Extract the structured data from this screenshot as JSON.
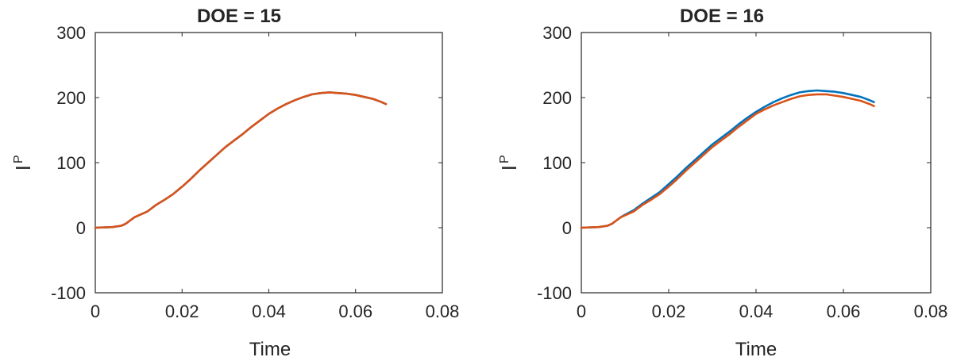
{
  "chart_data": [
    {
      "type": "line",
      "title": "DOE = 15",
      "xlabel": "Time",
      "ylabel": "I",
      "ylabel_superscript": "P",
      "xlim": [
        0,
        0.08
      ],
      "ylim": [
        -100,
        300
      ],
      "xticks": [
        "0",
        "0.02",
        "0.04",
        "0.06",
        "0.08"
      ],
      "yticks": [
        "-100",
        "0",
        "100",
        "200",
        "300"
      ],
      "grid": false,
      "series": [
        {
          "color": "#0072BD",
          "x": [
            0,
            0.004,
            0.006,
            0.007,
            0.008,
            0.009,
            0.01,
            0.012,
            0.014,
            0.016,
            0.018,
            0.02,
            0.022,
            0.024,
            0.026,
            0.028,
            0.03,
            0.032,
            0.034,
            0.036,
            0.038,
            0.04,
            0.042,
            0.044,
            0.046,
            0.048,
            0.05,
            0.052,
            0.054,
            0.056,
            0.058,
            0.06,
            0.062,
            0.064,
            0.066,
            0.067
          ],
          "y": [
            0,
            1,
            3,
            6,
            11,
            16,
            19,
            25,
            35,
            43,
            52,
            63,
            75,
            88,
            100,
            112,
            124,
            134,
            144,
            155,
            165,
            175,
            183,
            190,
            196,
            201,
            205,
            207,
            208,
            207,
            206,
            204,
            201,
            198,
            193,
            190
          ]
        },
        {
          "color": "#D95319",
          "x": [
            0,
            0.004,
            0.006,
            0.007,
            0.008,
            0.009,
            0.01,
            0.012,
            0.014,
            0.016,
            0.018,
            0.02,
            0.022,
            0.024,
            0.026,
            0.028,
            0.03,
            0.032,
            0.034,
            0.036,
            0.038,
            0.04,
            0.042,
            0.044,
            0.046,
            0.048,
            0.05,
            0.052,
            0.054,
            0.056,
            0.058,
            0.06,
            0.062,
            0.064,
            0.066,
            0.067
          ],
          "y": [
            0,
            1,
            3,
            6,
            11,
            16,
            19,
            25,
            35,
            43,
            52,
            63,
            75,
            88,
            100,
            112,
            124,
            134,
            144,
            155,
            165,
            175,
            183,
            190,
            196,
            201,
            205,
            207,
            208,
            207,
            206,
            204,
            201,
            198,
            193,
            190
          ]
        }
      ]
    },
    {
      "type": "line",
      "title": "DOE = 16",
      "xlabel": "Time",
      "ylabel": "I",
      "ylabel_superscript": "P",
      "xlim": [
        0,
        0.08
      ],
      "ylim": [
        -100,
        300
      ],
      "xticks": [
        "0",
        "0.02",
        "0.04",
        "0.06",
        "0.08"
      ],
      "yticks": [
        "-100",
        "0",
        "100",
        "200",
        "300"
      ],
      "grid": false,
      "series": [
        {
          "color": "#0072BD",
          "x": [
            0,
            0.004,
            0.006,
            0.007,
            0.008,
            0.009,
            0.01,
            0.012,
            0.014,
            0.016,
            0.018,
            0.02,
            0.022,
            0.024,
            0.026,
            0.028,
            0.03,
            0.032,
            0.034,
            0.036,
            0.038,
            0.04,
            0.042,
            0.044,
            0.046,
            0.048,
            0.05,
            0.052,
            0.054,
            0.056,
            0.058,
            0.06,
            0.062,
            0.064,
            0.066,
            0.067
          ],
          "y": [
            0,
            1,
            3,
            6,
            11,
            16,
            20,
            27,
            37,
            46,
            55,
            67,
            79,
            92,
            104,
            116,
            128,
            138,
            148,
            159,
            169,
            178,
            186,
            193,
            199,
            204,
            208,
            210,
            211,
            210,
            209,
            207,
            204,
            201,
            196,
            193
          ]
        },
        {
          "color": "#D95319",
          "x": [
            0,
            0.004,
            0.006,
            0.007,
            0.008,
            0.009,
            0.01,
            0.012,
            0.014,
            0.016,
            0.018,
            0.02,
            0.022,
            0.024,
            0.026,
            0.028,
            0.03,
            0.032,
            0.034,
            0.036,
            0.038,
            0.04,
            0.042,
            0.044,
            0.046,
            0.048,
            0.05,
            0.052,
            0.054,
            0.056,
            0.058,
            0.06,
            0.062,
            0.064,
            0.066,
            0.067
          ],
          "y": [
            0,
            1,
            3,
            6,
            11,
            16,
            19,
            25,
            35,
            43,
            52,
            63,
            75,
            88,
            100,
            112,
            124,
            134,
            144,
            155,
            165,
            175,
            182,
            188,
            193,
            198,
            202,
            204,
            205,
            205,
            203,
            201,
            198,
            195,
            190,
            187
          ]
        }
      ]
    }
  ]
}
